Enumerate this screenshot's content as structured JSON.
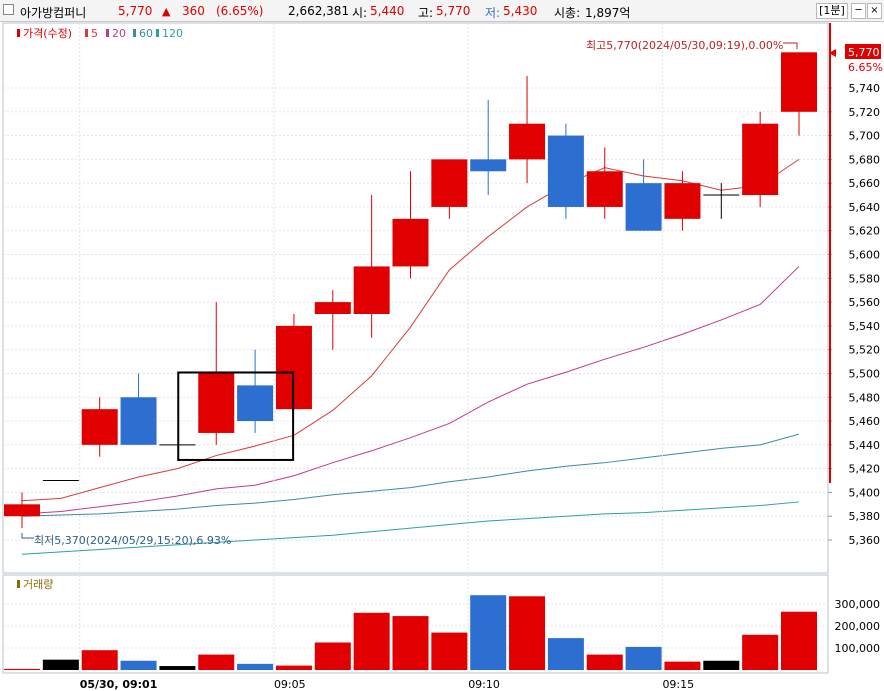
{
  "header": {
    "stock_name": "아가방컴퍼니",
    "price": "5,770",
    "change_arrow": "▲",
    "change": "360",
    "change_rate": "(6.65%)",
    "volume": "2,662,381",
    "open_label": "시:",
    "open": "5,440",
    "high_label": "고:",
    "high": "5,770",
    "low_label": "저:",
    "low": "5,430",
    "mcap_label": "시총:",
    "mcap": "1,897억",
    "interval": "[1분]",
    "win_min": "─",
    "win_close": "×"
  },
  "legend": {
    "price_label": "가격(수정)",
    "ma5": "5",
    "ma20": "20",
    "ma60": "60",
    "ma120": "120",
    "volume_label": "거래량"
  },
  "annotations": {
    "high_note": "최고5,770(2024/05/30,09:19),0.00%",
    "low_note": "최저5,370(2024/05/29,15:20),6.93%",
    "current_price": "5,770",
    "current_rate": "6.65%"
  },
  "colors": {
    "up": "#e00000",
    "down": "#2c6fd1",
    "volume_flat": "#000000",
    "ma5": "#d93a3a",
    "ma20": "#c0388e",
    "ma60": "#3a8aa8",
    "ma120": "#2aa39a",
    "selection_box": "#000000"
  },
  "chart_data": {
    "type": "candlestick",
    "price_axis": {
      "ticks": [
        5360,
        5380,
        5400,
        5420,
        5440,
        5460,
        5480,
        5500,
        5520,
        5540,
        5560,
        5580,
        5600,
        5620,
        5640,
        5660,
        5680,
        5700,
        5720,
        5740
      ],
      "tick_labels": [
        "5,360",
        "5,380",
        "5,400",
        "5,420",
        "5,440",
        "5,460",
        "5,480",
        "5,500",
        "5,520",
        "5,540",
        "5,560",
        "5,580",
        "5,600",
        "5,620",
        "5,640",
        "5,660",
        "5,680",
        "5,700",
        "5,720",
        "5,740"
      ]
    },
    "volume_axis": {
      "ticks": [
        100000,
        200000,
        300000
      ],
      "tick_labels": [
        "100,000",
        "200,000",
        "300,000"
      ]
    },
    "time_labels": [
      {
        "index": 2,
        "label": "05/30, 09:01"
      },
      {
        "index": 7,
        "label": "09:05"
      },
      {
        "index": 12,
        "label": "09:10"
      },
      {
        "index": 17,
        "label": "09:15"
      }
    ],
    "candles": [
      {
        "o": 5380,
        "h": 5400,
        "l": 5370,
        "c": 5390,
        "v": 5000
      },
      {
        "o": 5410,
        "h": 5410,
        "l": 5410,
        "c": 5410,
        "v": 47000
      },
      {
        "o": 5440,
        "h": 5480,
        "l": 5430,
        "c": 5470,
        "v": 90000
      },
      {
        "o": 5480,
        "h": 5500,
        "l": 5440,
        "c": 5440,
        "v": 42000
      },
      {
        "o": 5440,
        "h": 5440,
        "l": 5440,
        "c": 5440,
        "v": 18000
      },
      {
        "o": 5450,
        "h": 5560,
        "l": 5440,
        "c": 5500,
        "v": 70000
      },
      {
        "o": 5490,
        "h": 5520,
        "l": 5450,
        "c": 5460,
        "v": 28000
      },
      {
        "o": 5470,
        "h": 5550,
        "l": 5470,
        "c": 5540,
        "v": 20000
      },
      {
        "o": 5550,
        "h": 5570,
        "l": 5520,
        "c": 5560,
        "v": 125000
      },
      {
        "o": 5550,
        "h": 5650,
        "l": 5530,
        "c": 5590,
        "v": 260000
      },
      {
        "o": 5590,
        "h": 5670,
        "l": 5580,
        "c": 5630,
        "v": 245000
      },
      {
        "o": 5640,
        "h": 5680,
        "l": 5630,
        "c": 5680,
        "v": 170000
      },
      {
        "o": 5680,
        "h": 5730,
        "l": 5650,
        "c": 5670,
        "v": 340000
      },
      {
        "o": 5680,
        "h": 5750,
        "l": 5660,
        "c": 5710,
        "v": 335000
      },
      {
        "o": 5700,
        "h": 5710,
        "l": 5630,
        "c": 5640,
        "v": 145000
      },
      {
        "o": 5640,
        "h": 5690,
        "l": 5630,
        "c": 5670,
        "v": 70000
      },
      {
        "o": 5660,
        "h": 5680,
        "l": 5620,
        "c": 5620,
        "v": 105000
      },
      {
        "o": 5630,
        "h": 5670,
        "l": 5620,
        "c": 5660,
        "v": 38000
      },
      {
        "o": 5650,
        "h": 5660,
        "l": 5630,
        "c": 5650,
        "v": 42000
      },
      {
        "o": 5650,
        "h": 5720,
        "l": 5640,
        "c": 5710,
        "v": 160000
      },
      {
        "o": 5720,
        "h": 5770,
        "l": 5700,
        "c": 5770,
        "v": 265000
      }
    ],
    "volume_flat_indices": [
      1,
      4,
      18
    ],
    "ma": [
      {
        "name": "5",
        "values": [
          5393,
          5395,
          5404,
          5413,
          5420,
          5431,
          5439,
          5448,
          5469,
          5498,
          5539,
          5587,
          5615,
          5640,
          5659,
          5673,
          5666,
          5662,
          5654,
          5658,
          5680
        ]
      },
      {
        "name": "20",
        "values": [
          5382,
          5384,
          5388,
          5392,
          5397,
          5403,
          5406,
          5414,
          5425,
          5435,
          5446,
          5458,
          5476,
          5491,
          5501,
          5512,
          5522,
          5533,
          5545,
          5558,
          5590
        ]
      },
      {
        "name": "60",
        "values": [
          5380,
          5381,
          5382,
          5384,
          5386,
          5389,
          5391,
          5394,
          5398,
          5401,
          5404,
          5409,
          5413,
          5418,
          5422,
          5425,
          5429,
          5433,
          5437,
          5440,
          5449
        ]
      },
      {
        "name": "120",
        "values": [
          5348,
          5350,
          5352,
          5354,
          5356,
          5358,
          5360,
          5362,
          5364,
          5367,
          5370,
          5373,
          5376,
          5378,
          5380,
          5382,
          5383,
          5385,
          5387,
          5389,
          5392
        ]
      }
    ],
    "highlight_range": [
      5,
      6
    ]
  }
}
